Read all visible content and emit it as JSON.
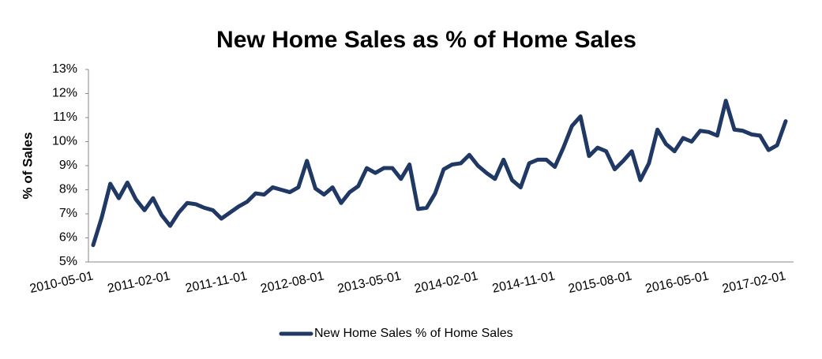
{
  "chart_data": {
    "type": "line",
    "title": "New Home Sales as % of Home Sales",
    "y_label": "% of Sales",
    "categories": [
      "2010-05-01",
      null,
      null,
      null,
      null,
      null,
      null,
      null,
      null,
      "2011-02-01",
      null,
      null,
      null,
      null,
      null,
      null,
      null,
      null,
      "2011-11-01",
      null,
      null,
      null,
      null,
      null,
      null,
      null,
      null,
      "2012-08-01",
      null,
      null,
      null,
      null,
      null,
      null,
      null,
      null,
      "2013-05-01",
      null,
      null,
      null,
      null,
      null,
      null,
      null,
      null,
      "2014-02-01",
      null,
      null,
      null,
      null,
      null,
      null,
      null,
      null,
      "2014-11-01",
      null,
      null,
      null,
      null,
      null,
      null,
      null,
      null,
      "2015-08-01",
      null,
      null,
      null,
      null,
      null,
      null,
      null,
      null,
      "2016-05-01",
      null,
      null,
      null,
      null,
      null,
      null,
      null,
      null,
      "2017-02-01"
    ],
    "series": [
      {
        "name": "New Home Sales % of Home Sales",
        "color": "#1f3864",
        "values": [
          5.7,
          6.85,
          8.25,
          7.65,
          8.3,
          7.6,
          7.15,
          7.65,
          6.95,
          6.5,
          7.05,
          7.45,
          7.4,
          7.25,
          7.15,
          6.8,
          7.05,
          7.3,
          7.5,
          7.85,
          7.8,
          8.1,
          8.0,
          7.9,
          8.1,
          9.2,
          8.05,
          7.8,
          8.1,
          7.45,
          7.9,
          8.15,
          8.9,
          8.7,
          8.9,
          8.9,
          8.45,
          9.05,
          7.2,
          7.25,
          7.85,
          8.85,
          9.05,
          9.1,
          9.45,
          9.0,
          8.7,
          8.45,
          9.25,
          8.4,
          8.1,
          9.1,
          9.25,
          9.25,
          8.95,
          9.75,
          10.65,
          11.05,
          9.4,
          9.75,
          9.6,
          8.85,
          9.2,
          9.6,
          8.4,
          9.1,
          10.5,
          9.9,
          9.6,
          10.15,
          10.0,
          10.45,
          10.4,
          10.25,
          11.7,
          10.5,
          10.45,
          10.3,
          10.25,
          9.65,
          9.85,
          10.85
        ]
      }
    ],
    "ylim": [
      5,
      13
    ],
    "yticks": [
      {
        "value": 5,
        "label": "5%"
      },
      {
        "value": 6,
        "label": "6%"
      },
      {
        "value": 7,
        "label": "7%"
      },
      {
        "value": 8,
        "label": "8%"
      },
      {
        "value": 9,
        "label": "9%"
      },
      {
        "value": 10,
        "label": "10%"
      },
      {
        "value": 11,
        "label": "11%"
      },
      {
        "value": 12,
        "label": "12%"
      },
      {
        "value": 13,
        "label": "13%"
      }
    ],
    "grid": false,
    "legend": "bottom"
  }
}
